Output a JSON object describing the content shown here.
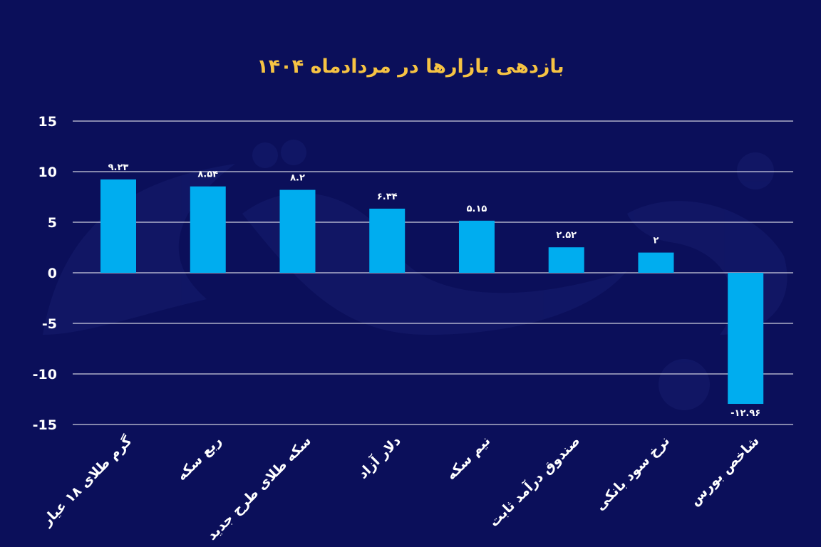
{
  "chart_data": {
    "type": "bar",
    "title": "بازدهی بازارها در مردادماه ۱۴۰۴",
    "categories": [
      "گرم طلای ۱۸ عیار",
      "ربع سکه",
      "سکه طلای طرح جدید",
      "دلار آزاد",
      "نیم سکه",
      "صندوق درآمد ثابت",
      "نرخ سود بانکی",
      "شاخص بورس"
    ],
    "values": [
      9.23,
      8.54,
      8.2,
      6.34,
      5.15,
      2.52,
      2,
      -12.96
    ],
    "data_labels": [
      "۹.۲۳",
      "۸.۵۴",
      "۸.۲",
      "۶.۳۴",
      "۵.۱۵",
      "۲.۵۲",
      "۲",
      "-۱۲.۹۶"
    ],
    "y_ticks": [
      15,
      10,
      5,
      0,
      -5,
      -10,
      -15
    ],
    "y_tick_labels": [
      "15",
      "10",
      "5",
      "0",
      "-5",
      "-10",
      "-15"
    ],
    "ylim": [
      -15,
      15
    ],
    "grid": true,
    "bar_color": "#00adef",
    "title_color": "#f6c343",
    "background_color": "#0b0f5a",
    "watermark": "دنیای اقتصاد"
  }
}
